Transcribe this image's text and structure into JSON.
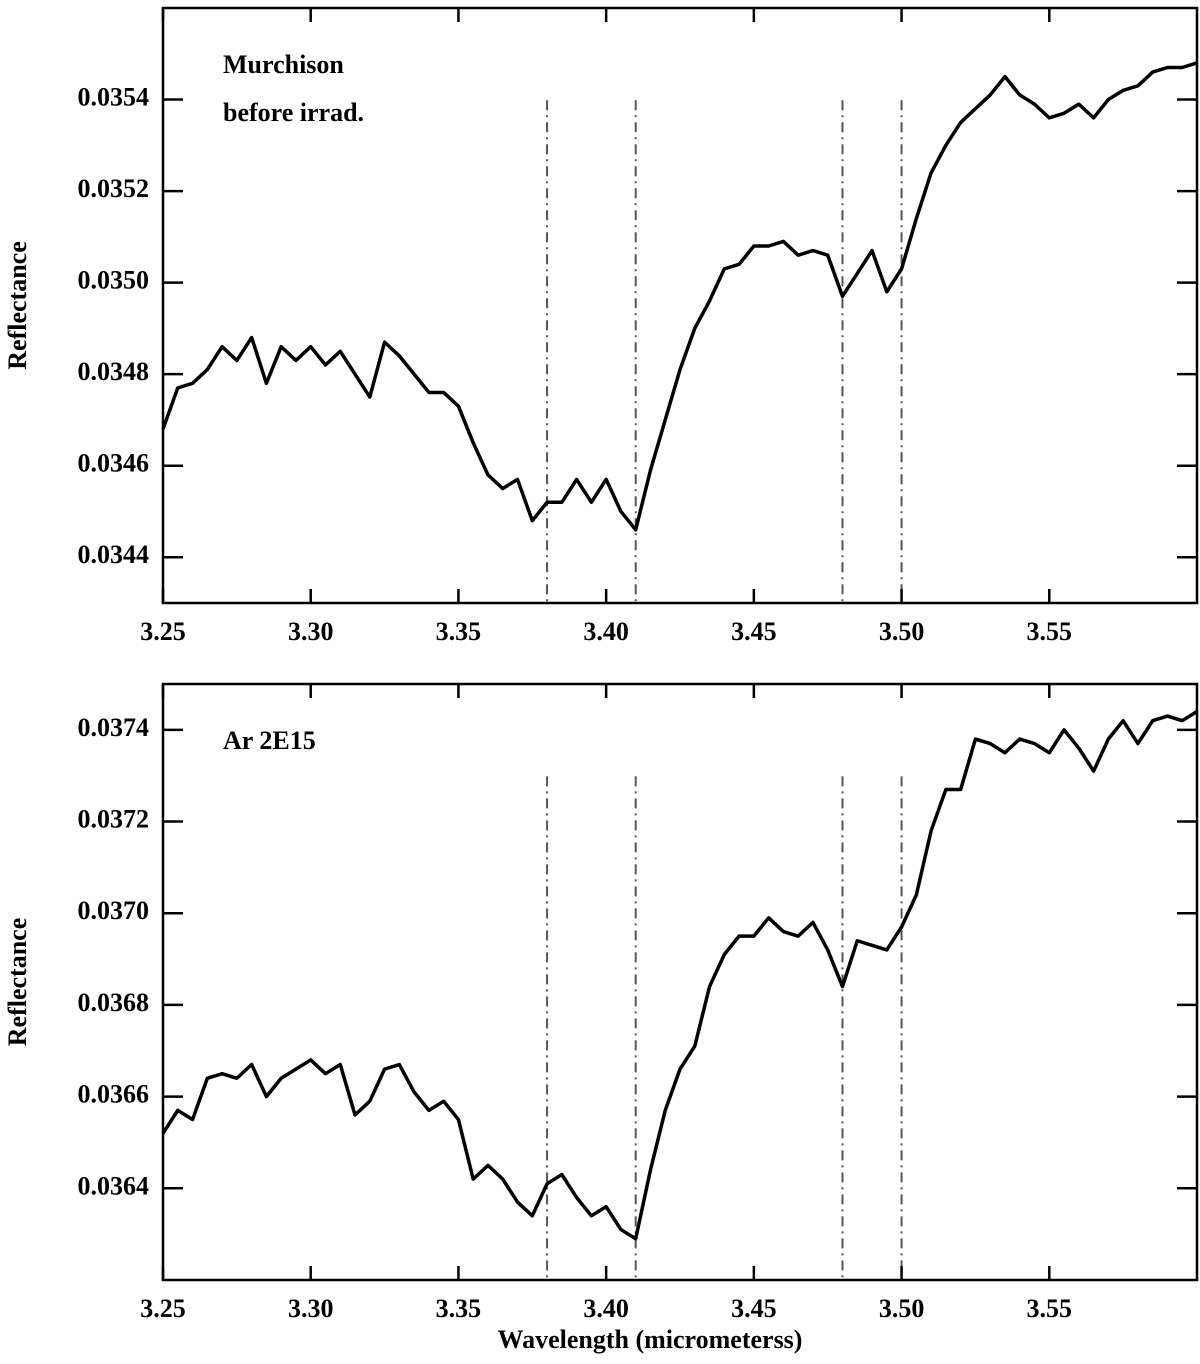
{
  "chart_data": [
    {
      "type": "line",
      "ylabel": "Reflectance",
      "annotations": [
        "Murchison",
        "before irrad."
      ],
      "xlim": [
        3.25,
        3.6
      ],
      "ylim": [
        0.0343,
        0.0356
      ],
      "xticks": [
        3.25,
        {
          "value": 3.3,
          "label": "3.30"
        },
        3.35,
        {
          "value": 3.4,
          "label": "3.40"
        },
        3.45,
        {
          "value": 3.5,
          "label": "3.50"
        },
        3.55
      ],
      "yticks": [
        0.0344,
        0.0346,
        0.0348,
        {
          "value": 0.035,
          "label": "0.0350"
        },
        0.0352,
        0.0354
      ],
      "vlines": [
        3.38,
        3.41,
        3.48,
        3.5
      ],
      "vline_color": "#555555",
      "x": [
        3.25,
        3.255,
        3.26,
        3.265,
        3.27,
        3.275,
        3.28,
        3.285,
        3.29,
        3.295,
        3.3,
        3.305,
        3.31,
        3.315,
        3.32,
        3.325,
        3.33,
        3.335,
        3.34,
        3.345,
        3.35,
        3.355,
        3.36,
        3.365,
        3.37,
        3.375,
        3.38,
        3.385,
        3.39,
        3.395,
        3.4,
        3.405,
        3.41,
        3.415,
        3.42,
        3.425,
        3.43,
        3.435,
        3.44,
        3.445,
        3.45,
        3.455,
        3.46,
        3.465,
        3.47,
        3.475,
        3.48,
        3.485,
        3.49,
        3.495,
        3.5,
        3.505,
        3.51,
        3.515,
        3.52,
        3.525,
        3.53,
        3.535,
        3.54,
        3.545,
        3.55,
        3.555,
        3.56,
        3.565,
        3.57,
        3.575,
        3.58,
        3.585,
        3.59,
        3.595,
        3.6
      ],
      "series": [
        {
          "color": "#000000",
          "values": [
            0.03468,
            0.03477,
            0.03478,
            0.03481,
            0.03486,
            0.03483,
            0.03488,
            0.03478,
            0.03486,
            0.03483,
            0.03486,
            0.03482,
            0.03485,
            0.0348,
            0.03475,
            0.03487,
            0.03484,
            0.0348,
            0.03476,
            0.03476,
            0.03473,
            0.03465,
            0.03458,
            0.03455,
            0.03457,
            0.03448,
            0.03452,
            0.03452,
            0.03457,
            0.03452,
            0.03457,
            0.0345,
            0.03446,
            0.03459,
            0.0347,
            0.03481,
            0.0349,
            0.03496,
            0.03503,
            0.03504,
            0.03508,
            0.03508,
            0.03509,
            0.03506,
            0.03507,
            0.03506,
            0.03497,
            0.03502,
            0.03507,
            0.03498,
            0.03503,
            0.03514,
            0.03524,
            0.0353,
            0.03535,
            0.03538,
            0.03541,
            0.03545,
            0.03541,
            0.03539,
            0.03536,
            0.03537,
            0.03539,
            0.03536,
            0.0354,
            0.03542,
            0.03543,
            0.03546,
            0.03547,
            0.03547,
            0.03548
          ]
        }
      ]
    },
    {
      "type": "line",
      "ylabel": "Reflectance",
      "annotations": [
        "Ar 2E15"
      ],
      "xlabel": "Wavelength (micrometerss)",
      "xlim": [
        3.25,
        3.6
      ],
      "ylim": [
        0.0362,
        0.0375
      ],
      "xticks": [
        3.25,
        {
          "value": 3.3,
          "label": "3.30"
        },
        3.35,
        {
          "value": 3.4,
          "label": "3.40"
        },
        3.45,
        {
          "value": 3.5,
          "label": "3.50"
        },
        3.55
      ],
      "yticks": [
        0.0364,
        0.0366,
        0.0368,
        {
          "value": 0.037,
          "label": "0.0370"
        },
        0.0372,
        0.0374
      ],
      "vlines": [
        3.38,
        3.41,
        3.48,
        3.5
      ],
      "vline_color": "#555555",
      "x": [
        3.25,
        3.255,
        3.26,
        3.265,
        3.27,
        3.275,
        3.28,
        3.285,
        3.29,
        3.295,
        3.3,
        3.305,
        3.31,
        3.315,
        3.32,
        3.325,
        3.33,
        3.335,
        3.34,
        3.345,
        3.35,
        3.355,
        3.36,
        3.365,
        3.37,
        3.375,
        3.38,
        3.385,
        3.39,
        3.395,
        3.4,
        3.405,
        3.41,
        3.415,
        3.42,
        3.425,
        3.43,
        3.435,
        3.44,
        3.445,
        3.45,
        3.455,
        3.46,
        3.465,
        3.47,
        3.475,
        3.48,
        3.485,
        3.49,
        3.495,
        3.5,
        3.505,
        3.51,
        3.515,
        3.52,
        3.525,
        3.53,
        3.535,
        3.54,
        3.545,
        3.55,
        3.555,
        3.56,
        3.565,
        3.57,
        3.575,
        3.58,
        3.585,
        3.59,
        3.595,
        3.6
      ],
      "series": [
        {
          "color": "#000000",
          "values": [
            0.03652,
            0.03657,
            0.03655,
            0.03664,
            0.03665,
            0.03664,
            0.03667,
            0.0366,
            0.03664,
            0.03666,
            0.03668,
            0.03665,
            0.03667,
            0.03656,
            0.03659,
            0.03666,
            0.03667,
            0.03661,
            0.03657,
            0.03659,
            0.03655,
            0.03642,
            0.03645,
            0.03642,
            0.03637,
            0.03634,
            0.03641,
            0.03643,
            0.03638,
            0.03634,
            0.03636,
            0.03631,
            0.03629,
            0.03644,
            0.03657,
            0.03666,
            0.03671,
            0.03684,
            0.03691,
            0.03695,
            0.03695,
            0.03699,
            0.03696,
            0.03695,
            0.03698,
            0.03692,
            0.03684,
            0.03694,
            0.03693,
            0.03692,
            0.03697,
            0.03704,
            0.03718,
            0.03727,
            0.03727,
            0.03738,
            0.03737,
            0.03735,
            0.03738,
            0.03737,
            0.03735,
            0.0374,
            0.03736,
            0.03731,
            0.03738,
            0.03742,
            0.03737,
            0.03742,
            0.03743,
            0.03742,
            0.03744
          ]
        }
      ]
    }
  ]
}
